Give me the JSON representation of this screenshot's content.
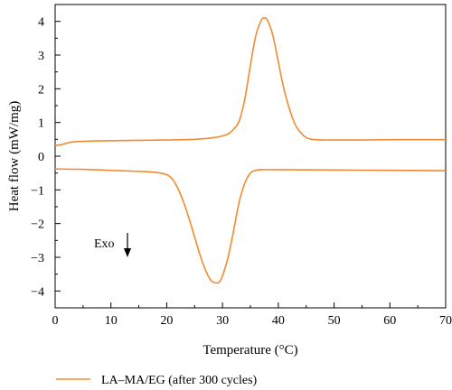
{
  "chart_data": {
    "type": "line",
    "xlabel": "Temperature (°C)",
    "ylabel": "Heat flow (mW/mg)",
    "xlim": [
      0,
      70
    ],
    "ylim": [
      -4.5,
      4.5
    ],
    "xticks": [
      "0",
      "10",
      "20",
      "30",
      "40",
      "50",
      "60",
      "70"
    ],
    "yticks": [
      "4",
      "3",
      "2",
      "1",
      "0",
      "−1",
      "−2",
      "−3",
      "−4"
    ],
    "grid": false,
    "legend_position": "bottom-left",
    "annotation": "Exo",
    "color": "#f28a30",
    "series": [
      {
        "name": "LA–MA/EG (after 300 cycles)",
        "segments": [
          {
            "part": "heating",
            "x": [
              0,
              1,
              2,
              3,
              5,
              7,
              10,
              15,
              20,
              25,
              28,
              30,
              31,
              32,
              33,
              34,
              35,
              36,
              37,
              37.5,
              38,
              39,
              40,
              41,
              42,
              43,
              44,
              45,
              46,
              48,
              50,
              55,
              60,
              65,
              70
            ],
            "y": [
              0.32,
              0.34,
              0.38,
              0.42,
              0.44,
              0.45,
              0.46,
              0.47,
              0.48,
              0.5,
              0.54,
              0.6,
              0.66,
              0.8,
              1.05,
              1.7,
              2.7,
              3.6,
              4.05,
              4.1,
              4.05,
              3.6,
              2.8,
              2.0,
              1.4,
              0.95,
              0.7,
              0.55,
              0.5,
              0.48,
              0.48,
              0.48,
              0.49,
              0.49,
              0.49
            ]
          },
          {
            "part": "cooling",
            "x": [
              0,
              5,
              10,
              15,
              18,
              20,
              21,
              22,
              23,
              24,
              25,
              26,
              27,
              28,
              29,
              29.5,
              30,
              31,
              32,
              33,
              34,
              35,
              36,
              37,
              40,
              50,
              60,
              70
            ],
            "y": [
              -0.38,
              -0.39,
              -0.42,
              -0.45,
              -0.48,
              -0.55,
              -0.68,
              -0.95,
              -1.35,
              -1.85,
              -2.4,
              -2.95,
              -3.4,
              -3.7,
              -3.76,
              -3.72,
              -3.55,
              -3.0,
              -2.2,
              -1.35,
              -0.8,
              -0.5,
              -0.42,
              -0.4,
              -0.4,
              -0.41,
              -0.42,
              -0.43
            ]
          }
        ]
      }
    ]
  }
}
